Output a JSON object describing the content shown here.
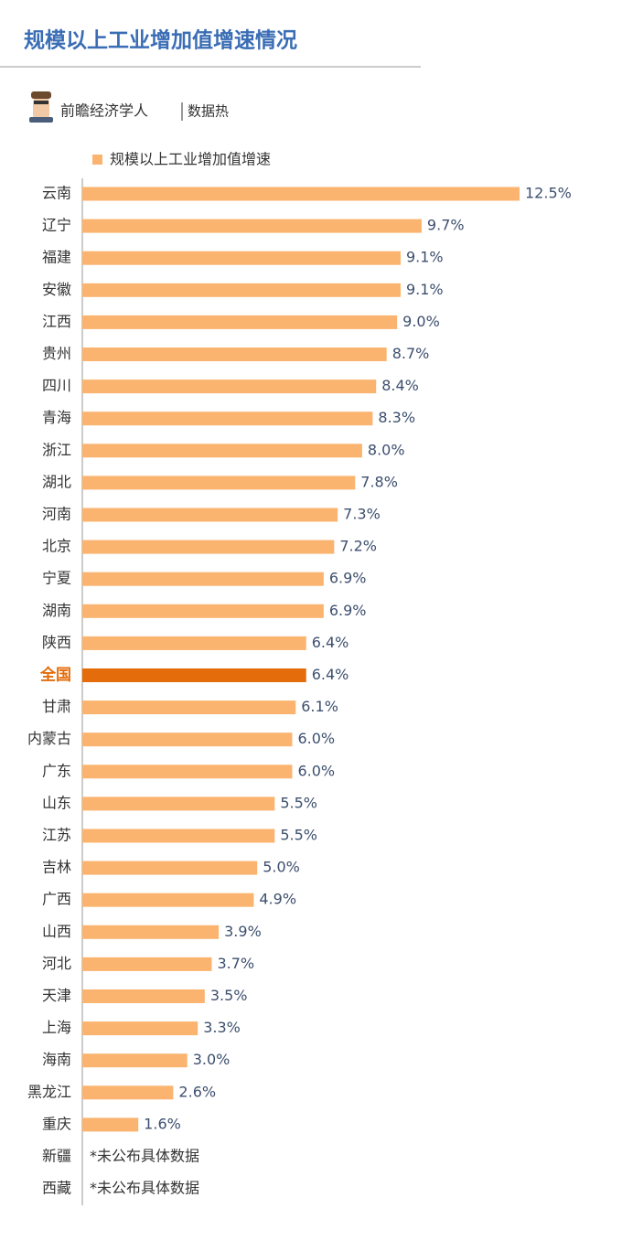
{
  "chart_data": {
    "type": "bar",
    "orientation": "horizontal",
    "title": "规模以上工业增加值增速情况",
    "source": "前瞻经济学人",
    "source_channel": "数据热",
    "missing_label": "*未公布具体数据",
    "categories": [
      "云南",
      "辽宁",
      "福建",
      "安徽",
      "江西",
      "贵州",
      "四川",
      "青海",
      "浙江",
      "湖北",
      "河南",
      "北京",
      "宁夏",
      "湖南",
      "陕西",
      "全国",
      "甘肃",
      "内蒙古",
      "广东",
      "山东",
      "江苏",
      "吉林",
      "广西",
      "山西",
      "河北",
      "天津",
      "上海",
      "海南",
      "黑龙江",
      "重庆",
      "新疆",
      "西藏"
    ],
    "series": [
      {
        "name": "规模以上工业增加值增速",
        "color": "#fbb46f",
        "values": [
          12.5,
          9.7,
          9.1,
          9.1,
          9.0,
          8.7,
          8.4,
          8.3,
          8.0,
          7.8,
          7.3,
          7.2,
          6.9,
          6.9,
          6.4,
          6.4,
          6.1,
          6.0,
          6.0,
          5.5,
          5.5,
          5.0,
          4.9,
          3.9,
          3.7,
          3.5,
          3.3,
          3.0,
          2.6,
          1.6,
          null,
          null
        ],
        "value_labels": [
          "12.5%",
          "9.7%",
          "9.1%",
          "9.1%",
          "9.0%",
          "8.7%",
          "8.4%",
          "8.3%",
          "8.0%",
          "7.8%",
          "7.3%",
          "7.2%",
          "6.9%",
          "6.9%",
          "6.4%",
          "6.4%",
          "6.1%",
          "6.0%",
          "6.0%",
          "5.5%",
          "5.5%",
          "5.0%",
          "4.9%",
          "3.9%",
          "3.7%",
          "3.5%",
          "3.3%",
          "3.0%",
          "2.6%",
          "1.6%",
          null,
          null
        ],
        "colors": [
          "#fbb46f",
          "#fbb46f",
          "#fbb46f",
          "#fbb46f",
          "#fbb46f",
          "#fbb46f",
          "#fbb46f",
          "#fbb46f",
          "#fbb46f",
          "#fbb46f",
          "#fbb46f",
          "#fbb46f",
          "#fbb46f",
          "#fbb46f",
          "#fbb46f",
          "#e46c0a",
          "#fbb46f",
          "#fbb46f",
          "#fbb46f",
          "#fbb46f",
          "#fbb46f",
          "#fbb46f",
          "#fbb46f",
          "#fbb46f",
          "#fbb46f",
          "#fbb46f",
          "#fbb46f",
          "#fbb46f",
          "#fbb46f",
          "#fbb46f",
          "#fbb46f",
          "#fbb46f"
        ]
      }
    ],
    "legend": "top-left"
  }
}
